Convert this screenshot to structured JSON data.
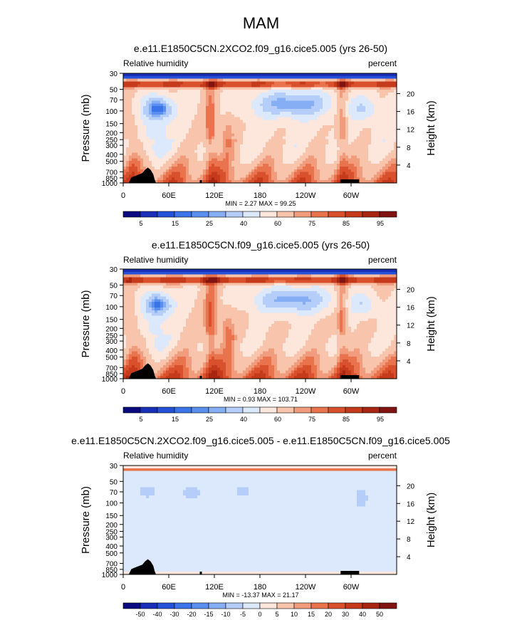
{
  "page_title": "MAM",
  "colors": {
    "land": "#000000",
    "abs_scale": [
      "#0a0a80",
      "#1a2fb8",
      "#2550d8",
      "#3b73e8",
      "#5a8ff0",
      "#86aef5",
      "#b4cdf9",
      "#dce8fb",
      "#fde6dc",
      "#f8c4ac",
      "#f19c7c",
      "#e8734d",
      "#d9502c",
      "#c43a1a",
      "#a82512",
      "#7f1410"
    ],
    "diff_scale": [
      "#0a0a80",
      "#1a2fb8",
      "#2550d8",
      "#3b73e8",
      "#5a8ff0",
      "#86aef5",
      "#b4cdf9",
      "#dce8fb",
      "#fde6dc",
      "#f8c4ac",
      "#f19c7c",
      "#e8734d",
      "#d9502c",
      "#c43a1a",
      "#a82512",
      "#7f1410"
    ]
  },
  "chart_data": [
    {
      "type": "heatmap",
      "title": "e.e11.E1850C5CN.2XCO2.f09_g16.cice5.005 (yrs 26-50)",
      "left_label": "Relative humidity",
      "right_label": "percent",
      "ylabel": "Pressure (mb)",
      "ylabel_right": "Height (km)",
      "x_ticks": [
        "0",
        "60E",
        "120E",
        "180",
        "120W",
        "60W"
      ],
      "pressure_ticks": [
        "30",
        "50",
        "70",
        "100",
        "150",
        "200",
        "250",
        "300",
        "400",
        "500",
        "700",
        "850",
        "1000"
      ],
      "height_ticks": [
        "20",
        "16",
        "12",
        "8",
        "4"
      ],
      "stats": "MIN =  2.27  MAX =  99.25",
      "colorbar_labels": [
        "5",
        "15",
        "25",
        "40",
        "60",
        "75",
        "85",
        "95"
      ],
      "fields": {
        "dry_pool_a": 1,
        "dry_pool_b": 1
      },
      "min": 2.27,
      "max": 99.25
    },
    {
      "type": "heatmap",
      "title": "e.e11.E1850C5CN.f09_g16.cice5.005 (yrs 26-50)",
      "left_label": "Relative humidity",
      "right_label": "percent",
      "ylabel": "Pressure (mb)",
      "ylabel_right": "Height (km)",
      "x_ticks": [
        "0",
        "60E",
        "120E",
        "180",
        "120W",
        "60W"
      ],
      "pressure_ticks": [
        "30",
        "50",
        "70",
        "100",
        "150",
        "200",
        "250",
        "300",
        "400",
        "500",
        "700",
        "850",
        "1000"
      ],
      "height_ticks": [
        "20",
        "16",
        "12",
        "8",
        "4"
      ],
      "stats": "MIN =  0.93  MAX =  103.71",
      "colorbar_labels": [
        "5",
        "15",
        "25",
        "40",
        "60",
        "75",
        "85",
        "95"
      ],
      "min": 0.93,
      "max": 103.71
    },
    {
      "type": "heatmap",
      "title": "e.e11.E1850C5CN.2XCO2.f09_g16.cice5.005 - e.e11.E1850C5CN.f09_g16.cice5.005",
      "left_label": "Relative humidity",
      "right_label": "percent",
      "ylabel": "Pressure (mb)",
      "ylabel_right": "Height (km)",
      "x_ticks": [
        "0",
        "60E",
        "120E",
        "180",
        "120W",
        "60W"
      ],
      "pressure_ticks": [
        "30",
        "50",
        "70",
        "100",
        "150",
        "200",
        "250",
        "300",
        "400",
        "500",
        "700",
        "850",
        "1000"
      ],
      "height_ticks": [
        "20",
        "16",
        "12",
        "8",
        "4"
      ],
      "stats": "MIN = -13.37  MAX =  21.17",
      "colorbar_labels": [
        "-50",
        "-40",
        "-30",
        "-20",
        "-15",
        "-10",
        "-5",
        "0",
        "5",
        "10",
        "15",
        "20",
        "30",
        "40",
        "50"
      ],
      "min": -13.37,
      "max": 21.17
    }
  ]
}
